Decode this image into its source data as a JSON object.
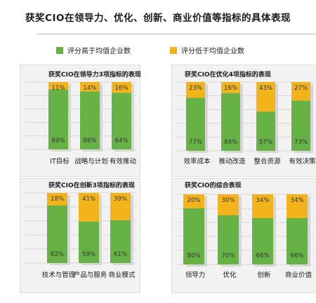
{
  "title": "获奖CIO在领导力、优化、创新、商业价值等指标的具体表现",
  "legend": {
    "high": "评分高于均值企业数",
    "low": "评分低于均值企业数",
    "high_color": "#66b245",
    "low_color": "#f2b41a"
  },
  "chart_data": [
    {
      "type": "bar",
      "stacked": true,
      "title": "获奖CIO在领导力3项指标的表现",
      "categories": [
        "IT目标",
        "战略与计划",
        "有效推动"
      ],
      "series": [
        {
          "name": "评分高于均值企业数",
          "values": [
            89,
            86,
            84
          ],
          "labels": [
            "89%",
            "86%",
            "84%"
          ]
        },
        {
          "name": "评分低于均值企业数",
          "values": [
            11,
            14,
            16
          ],
          "labels": [
            "11%",
            "14%",
            "16%"
          ]
        }
      ],
      "ylim": [
        0,
        100
      ]
    },
    {
      "type": "bar",
      "stacked": true,
      "title": "获奖CIO在优化4项指标的表现",
      "categories": [
        "效率成本",
        "推动改造",
        "整合资源",
        "有效决策"
      ],
      "series": [
        {
          "name": "评分高于均值企业数",
          "values": [
            77,
            84,
            57,
            73
          ],
          "labels": [
            "77%",
            "84%",
            "57%",
            "73%"
          ]
        },
        {
          "name": "评分低于均值企业数",
          "values": [
            23,
            16,
            43,
            27
          ],
          "labels": [
            "23%",
            "16%",
            "43%",
            "27%"
          ]
        }
      ],
      "ylim": [
        0,
        100
      ]
    },
    {
      "type": "bar",
      "stacked": true,
      "title": "获奖CIO在创新3项指标的表现",
      "categories": [
        "技术与管理",
        "产品与服务",
        "商业模式"
      ],
      "series": [
        {
          "name": "评分高于均值企业数",
          "values": [
            82,
            59,
            61
          ],
          "labels": [
            "82%",
            "59%",
            "61%"
          ]
        },
        {
          "name": "评分低于均值企业数",
          "values": [
            18,
            41,
            39
          ],
          "labels": [
            "18%",
            "41%",
            "39%"
          ]
        }
      ],
      "ylim": [
        0,
        100
      ]
    },
    {
      "type": "bar",
      "stacked": true,
      "title": "获奖CIO的综合表现",
      "categories": [
        "领导力",
        "优化",
        "创新",
        "商业价值"
      ],
      "series": [
        {
          "name": "评分高于均值企业数",
          "values": [
            80,
            70,
            66,
            66
          ],
          "labels": [
            "80%",
            "70%",
            "66%",
            "66%"
          ]
        },
        {
          "name": "评分低于均值企业数",
          "values": [
            20,
            30,
            34,
            34
          ],
          "labels": [
            "20%",
            "30%",
            "34%",
            "34%"
          ]
        }
      ],
      "ylim": [
        0,
        100
      ]
    }
  ]
}
